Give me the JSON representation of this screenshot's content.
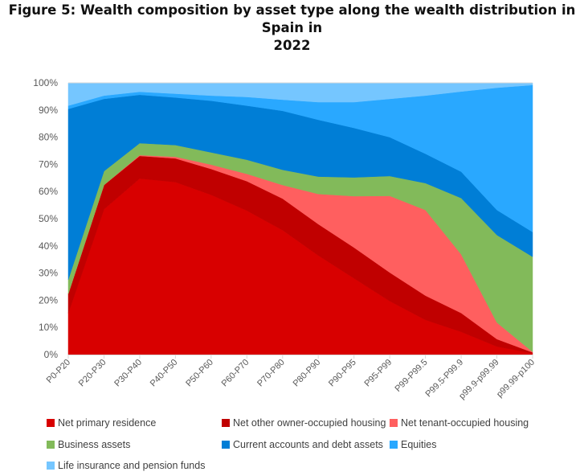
{
  "title": {
    "line1": "Figure 5: Wealth composition by asset type along the wealth distribution in Spain in",
    "line2": "2022"
  },
  "chart_data": {
    "type": "area",
    "stacked": true,
    "percent": true,
    "title": "Figure 5: Wealth composition by asset type along the wealth distribution in Spain in 2022",
    "xlabel": "",
    "ylabel": "",
    "ylim": [
      0,
      100
    ],
    "yticks": [
      "0%",
      "10%",
      "20%",
      "30%",
      "40%",
      "50%",
      "60%",
      "70%",
      "80%",
      "90%",
      "100%"
    ],
    "grid": false,
    "legend_position": "bottom",
    "categories": [
      "P0-P20",
      "P20-P30",
      "P30-P40",
      "P40-P50",
      "P50-P60",
      "P60-P70",
      "P70-P80",
      "P80-P90",
      "P90-P95",
      "P95-P99",
      "P99-P99.5",
      "P99.5-P99.9",
      "p99.9-p99.99",
      "p99.99-p100"
    ],
    "series": [
      {
        "name": "Net primary residence",
        "color": "#D80000",
        "values": [
          15.3,
          53.5,
          64.8,
          63.5,
          58.8,
          53.0,
          45.8,
          36.5,
          28.1,
          19.7,
          12.8,
          8.4,
          3.0,
          0.5
        ]
      },
      {
        "name": "Net other owner-occupied housing",
        "color": "#C00000",
        "values": [
          7.1,
          8.9,
          8.3,
          8.7,
          9.5,
          10.8,
          11.6,
          11.5,
          11.3,
          10.5,
          8.9,
          6.9,
          2.7,
          0.3
        ]
      },
      {
        "name": "Net tenant-occupied housing",
        "color": "#FF5F5F",
        "values": [
          0,
          0,
          0.3,
          0.6,
          1.6,
          2.7,
          5.0,
          11.1,
          18.9,
          28.2,
          31.5,
          21.6,
          6.1,
          0.2
        ]
      },
      {
        "name": "Business assets",
        "color": "#82BA5A",
        "values": [
          5.2,
          5.1,
          4.4,
          4.3,
          4.5,
          5.2,
          5.6,
          6.4,
          6.9,
          7.3,
          9.9,
          20.7,
          32.2,
          35.0
        ]
      },
      {
        "name": "Current accounts and debt assets",
        "color": "#007ED6",
        "values": [
          62.8,
          26.6,
          17.8,
          17.5,
          19.0,
          19.9,
          21.7,
          20.9,
          18.2,
          14.3,
          10.8,
          9.7,
          9.2,
          9.1
        ]
      },
      {
        "name": "Equities",
        "color": "#29A8FF",
        "values": [
          1.2,
          1.2,
          1.1,
          1.4,
          1.9,
          3.2,
          4.1,
          6.5,
          9.5,
          14.1,
          21.4,
          29.5,
          45.0,
          54.1
        ]
      },
      {
        "name": "Life insurance and pension funds",
        "color": "#75C6FF",
        "values": [
          8.4,
          4.7,
          3.3,
          4.0,
          4.7,
          5.2,
          6.2,
          7.1,
          7.1,
          5.9,
          4.7,
          3.2,
          1.8,
          0.8
        ]
      }
    ]
  }
}
